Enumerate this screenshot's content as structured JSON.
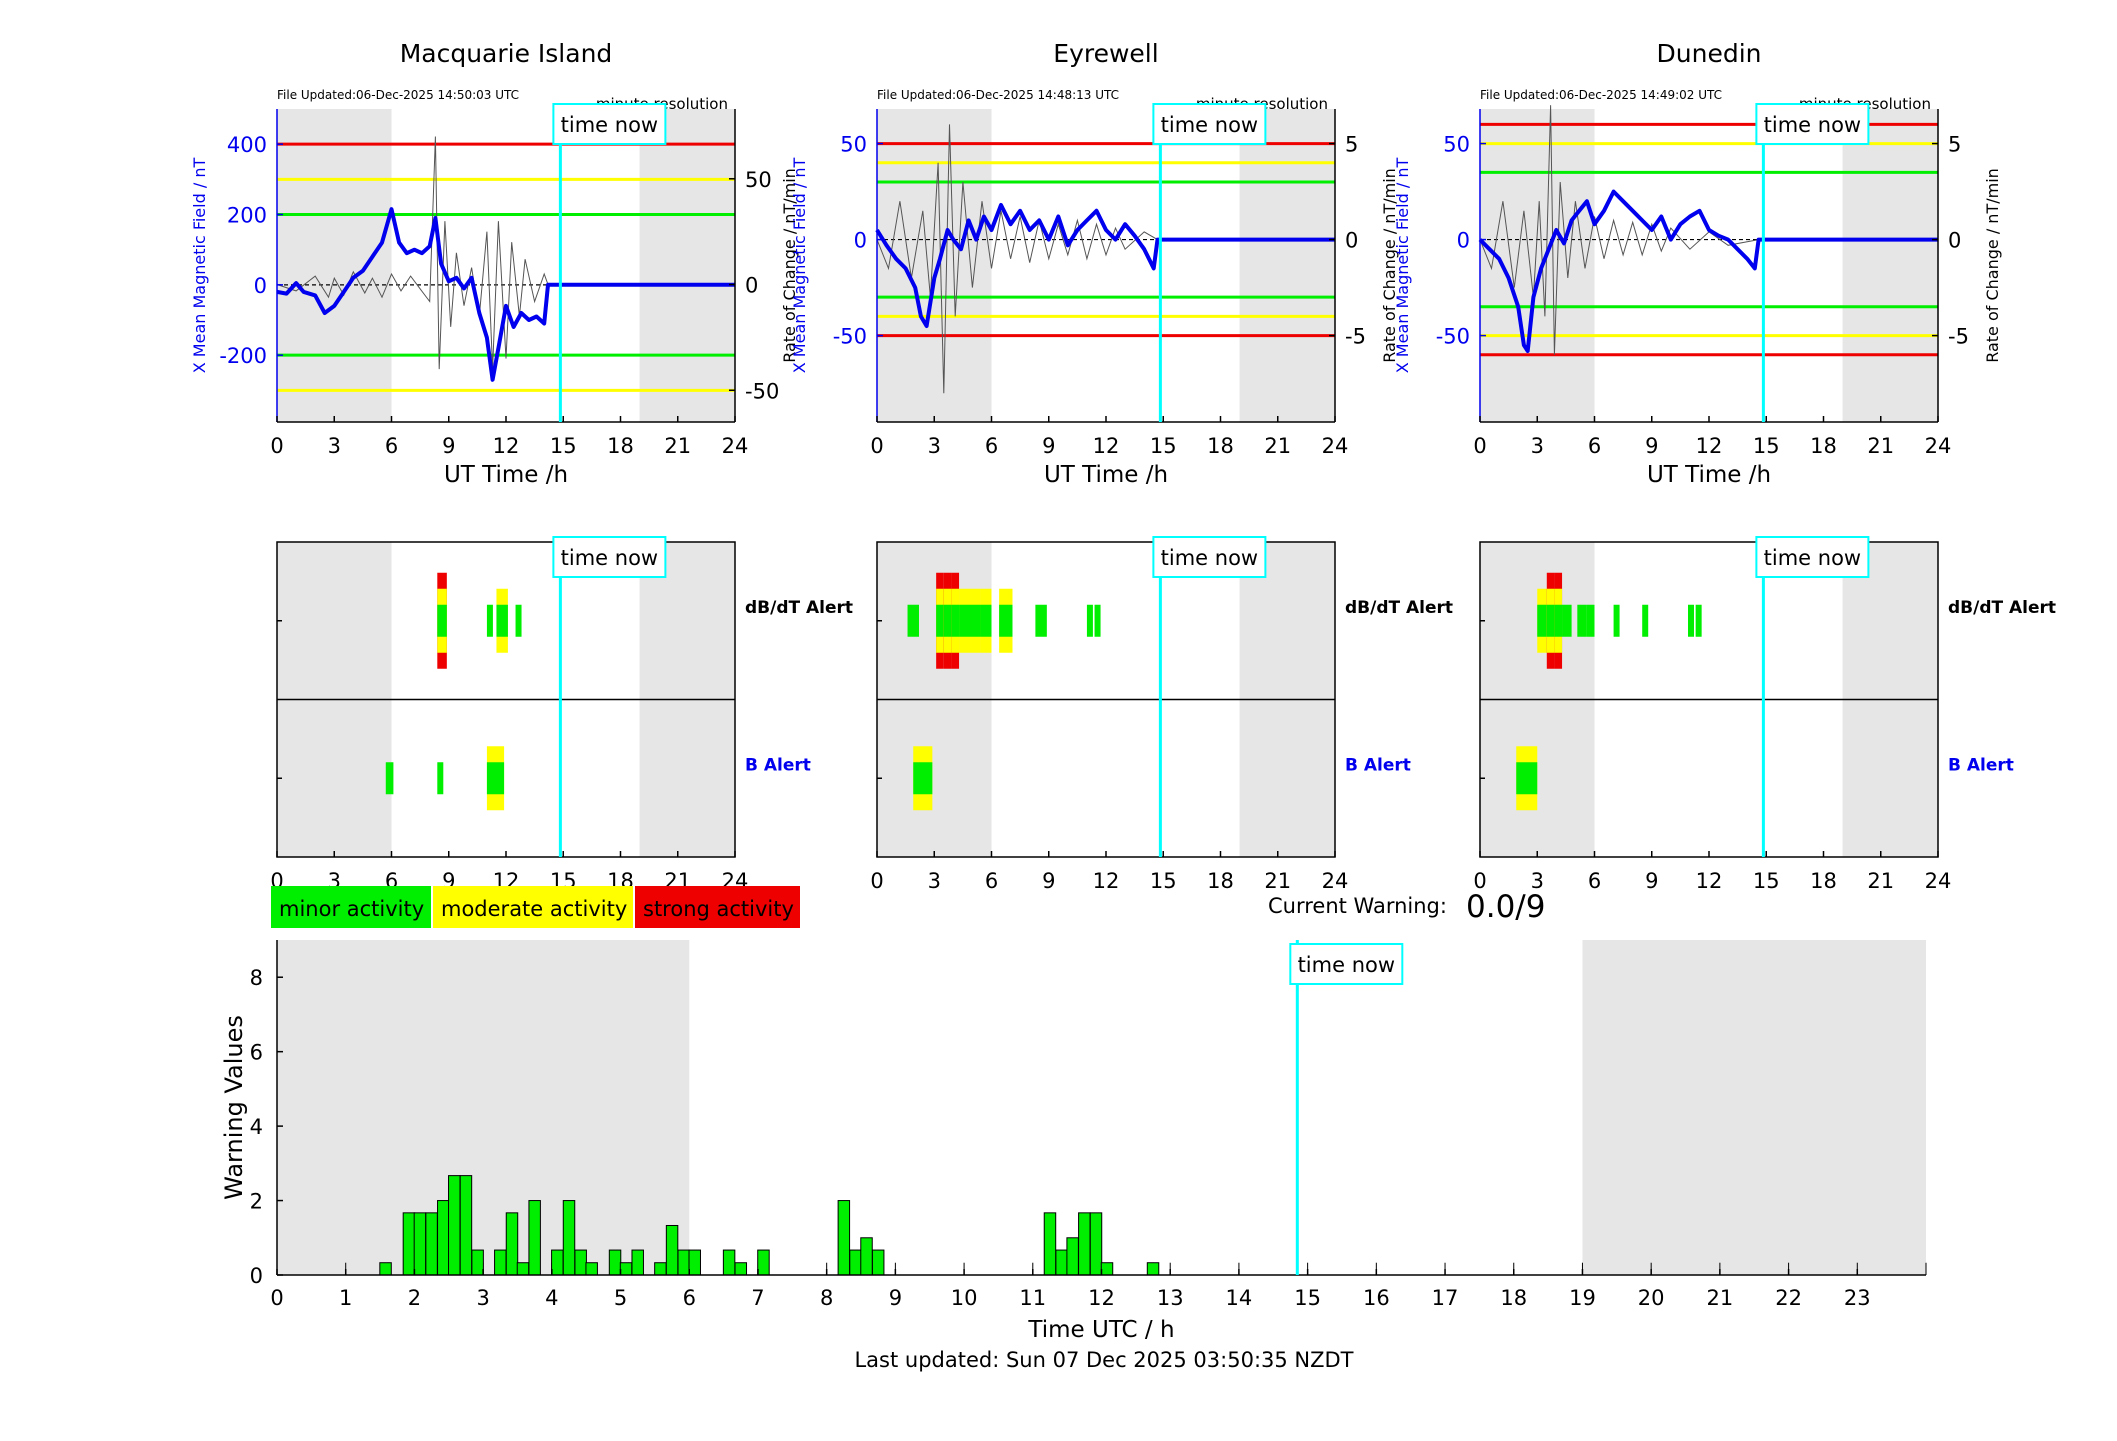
{
  "page": {
    "footer": "Last updated: Sun 07 Dec 2025 03:50:35 NZDT"
  },
  "colors": {
    "night": "#e6e6e6",
    "field": "#0000ee",
    "roc": "#555555",
    "green": "#00ee00",
    "yellow": "#ffff00",
    "red": "#ee0000",
    "cyan": "#00ffff"
  },
  "time_now_label": "time now",
  "time_now_h": 14.85,
  "stations": [
    {
      "name": "Macquarie Island",
      "file_updated": "File Updated:06-Dec-2025 14:50:03 UTC",
      "resolution": "minute resolution",
      "ylim": [
        -390,
        500
      ],
      "y2lim": [
        -65,
        83
      ],
      "yticks": [
        -200,
        0,
        200,
        400
      ],
      "y2ticks": [
        -50,
        0,
        50
      ],
      "thresholds": {
        "green": 200,
        "yellow": 300,
        "red": 400
      },
      "night": [
        [
          0,
          6
        ],
        [
          19,
          24
        ]
      ],
      "series_field": [
        [
          0,
          -20
        ],
        [
          0.5,
          -25
        ],
        [
          1,
          5
        ],
        [
          1.4,
          -20
        ],
        [
          2,
          -30
        ],
        [
          2.5,
          -80
        ],
        [
          3,
          -60
        ],
        [
          3.5,
          -20
        ],
        [
          4,
          20
        ],
        [
          4.5,
          40
        ],
        [
          5,
          80
        ],
        [
          5.5,
          120
        ],
        [
          6,
          215
        ],
        [
          6.4,
          120
        ],
        [
          6.8,
          90
        ],
        [
          7.2,
          100
        ],
        [
          7.6,
          90
        ],
        [
          8,
          110
        ],
        [
          8.3,
          190
        ],
        [
          8.6,
          60
        ],
        [
          9,
          10
        ],
        [
          9.4,
          20
        ],
        [
          9.8,
          -10
        ],
        [
          10.2,
          20
        ],
        [
          10.6,
          -80
        ],
        [
          11,
          -150
        ],
        [
          11.3,
          -270
        ],
        [
          11.6,
          -180
        ],
        [
          12,
          -60
        ],
        [
          12.4,
          -120
        ],
        [
          12.8,
          -80
        ],
        [
          13.2,
          -100
        ],
        [
          13.6,
          -90
        ],
        [
          14,
          -110
        ],
        [
          14.2,
          0
        ],
        [
          14.85,
          0
        ],
        [
          24,
          0
        ]
      ],
      "series_roc": [
        [
          0,
          0
        ],
        [
          1,
          -3
        ],
        [
          2,
          4
        ],
        [
          2.7,
          -6
        ],
        [
          3,
          3
        ],
        [
          3.5,
          -5
        ],
        [
          4,
          6
        ],
        [
          4.6,
          -4
        ],
        [
          5,
          3
        ],
        [
          5.5,
          -6
        ],
        [
          6,
          5
        ],
        [
          6.5,
          -3
        ],
        [
          7,
          4
        ],
        [
          7.5,
          -2
        ],
        [
          8,
          -8
        ],
        [
          8.3,
          70
        ],
        [
          8.5,
          -40
        ],
        [
          8.8,
          30
        ],
        [
          9.1,
          -20
        ],
        [
          9.4,
          15
        ],
        [
          9.8,
          -10
        ],
        [
          10.2,
          8
        ],
        [
          10.6,
          -15
        ],
        [
          11,
          25
        ],
        [
          11.3,
          -40
        ],
        [
          11.6,
          30
        ],
        [
          12,
          -35
        ],
        [
          12.3,
          20
        ],
        [
          12.7,
          -15
        ],
        [
          13,
          12
        ],
        [
          13.5,
          -8
        ],
        [
          14,
          5
        ],
        [
          14.2,
          0
        ],
        [
          24,
          0
        ]
      ],
      "db_alert": [
        [
          8.4,
          8.9,
          3
        ],
        [
          11,
          11.3,
          1
        ],
        [
          11.5,
          12.1,
          2
        ],
        [
          12.5,
          12.8,
          1
        ]
      ],
      "b_alert": [
        [
          5.7,
          6.1,
          1
        ],
        [
          8.4,
          8.7,
          1
        ],
        [
          11,
          11.9,
          2
        ]
      ]
    },
    {
      "name": "Eyrewell",
      "file_updated": "File Updated:06-Dec-2025 14:48:13 UTC",
      "resolution": "minute resolution",
      "ylim": [
        -95,
        68
      ],
      "y2lim": [
        -9.5,
        6.8
      ],
      "yticks": [
        -50,
        0,
        50
      ],
      "y2ticks": [
        -5,
        0,
        5
      ],
      "thresholds": {
        "green": 30,
        "yellow": 40,
        "red": 50
      },
      "night": [
        [
          0,
          6
        ],
        [
          19,
          24
        ]
      ],
      "series_field": [
        [
          0,
          5
        ],
        [
          0.5,
          -3
        ],
        [
          1,
          -10
        ],
        [
          1.5,
          -15
        ],
        [
          2,
          -25
        ],
        [
          2.3,
          -40
        ],
        [
          2.6,
          -45
        ],
        [
          3,
          -20
        ],
        [
          3.3,
          -10
        ],
        [
          3.7,
          5
        ],
        [
          4,
          0
        ],
        [
          4.4,
          -5
        ],
        [
          4.8,
          10
        ],
        [
          5.2,
          0
        ],
        [
          5.6,
          12
        ],
        [
          6,
          5
        ],
        [
          6.5,
          18
        ],
        [
          7,
          8
        ],
        [
          7.5,
          15
        ],
        [
          8,
          5
        ],
        [
          8.5,
          10
        ],
        [
          9,
          0
        ],
        [
          9.5,
          12
        ],
        [
          10,
          -3
        ],
        [
          10.5,
          5
        ],
        [
          11,
          10
        ],
        [
          11.5,
          15
        ],
        [
          12,
          5
        ],
        [
          12.5,
          0
        ],
        [
          13,
          8
        ],
        [
          13.5,
          2
        ],
        [
          14,
          -5
        ],
        [
          14.5,
          -15
        ],
        [
          14.7,
          0
        ],
        [
          24,
          0
        ]
      ],
      "series_roc": [
        [
          0,
          0
        ],
        [
          0.6,
          -1.5
        ],
        [
          1.2,
          2
        ],
        [
          1.8,
          -2
        ],
        [
          2.4,
          1.5
        ],
        [
          2.8,
          -3
        ],
        [
          3.2,
          4
        ],
        [
          3.5,
          -8
        ],
        [
          3.8,
          6
        ],
        [
          4.1,
          -4
        ],
        [
          4.5,
          3
        ],
        [
          5,
          -2.5
        ],
        [
          5.5,
          2
        ],
        [
          6,
          -1.5
        ],
        [
          6.5,
          1.5
        ],
        [
          7,
          -1
        ],
        [
          7.5,
          1.2
        ],
        [
          8,
          -1.2
        ],
        [
          8.5,
          1
        ],
        [
          9,
          -1
        ],
        [
          9.5,
          0.8
        ],
        [
          10,
          -0.8
        ],
        [
          10.5,
          1
        ],
        [
          11,
          -1
        ],
        [
          11.5,
          0.8
        ],
        [
          12,
          -0.8
        ],
        [
          12.5,
          0.6
        ],
        [
          13,
          -0.5
        ],
        [
          14,
          0.4
        ],
        [
          14.7,
          0
        ],
        [
          24,
          0
        ]
      ],
      "db_alert": [
        [
          1.6,
          2.2,
          1
        ],
        [
          3.1,
          3.5,
          3
        ],
        [
          3.5,
          3.9,
          3
        ],
        [
          3.9,
          4.3,
          3
        ],
        [
          4.3,
          4.9,
          2
        ],
        [
          4.9,
          5.4,
          2
        ],
        [
          5.4,
          6.0,
          2
        ],
        [
          6.4,
          7.1,
          2
        ],
        [
          8.3,
          8.9,
          1
        ],
        [
          11.0,
          11.3,
          1
        ],
        [
          11.4,
          11.7,
          1
        ]
      ],
      "b_alert": [
        [
          1.9,
          2.9,
          2
        ]
      ]
    },
    {
      "name": "Dunedin",
      "file_updated": "File Updated:06-Dec-2025 14:49:02 UTC",
      "resolution": "minute resolution",
      "ylim": [
        -95,
        68
      ],
      "y2lim": [
        -9.5,
        6.8
      ],
      "yticks": [
        -50,
        0,
        50
      ],
      "y2ticks": [
        -5,
        0,
        5
      ],
      "thresholds": {
        "green": 35,
        "yellow": 50,
        "red": 60
      },
      "night": [
        [
          0,
          6
        ],
        [
          19,
          24
        ]
      ],
      "series_field": [
        [
          0,
          0
        ],
        [
          0.5,
          -5
        ],
        [
          1,
          -10
        ],
        [
          1.5,
          -20
        ],
        [
          2,
          -35
        ],
        [
          2.3,
          -55
        ],
        [
          2.5,
          -58
        ],
        [
          2.8,
          -30
        ],
        [
          3.2,
          -15
        ],
        [
          3.6,
          -5
        ],
        [
          4,
          5
        ],
        [
          4.4,
          -2
        ],
        [
          4.8,
          10
        ],
        [
          5.2,
          15
        ],
        [
          5.6,
          20
        ],
        [
          6,
          8
        ],
        [
          6.5,
          15
        ],
        [
          7,
          25
        ],
        [
          7.5,
          20
        ],
        [
          8,
          15
        ],
        [
          8.5,
          10
        ],
        [
          9,
          5
        ],
        [
          9.5,
          12
        ],
        [
          10,
          0
        ],
        [
          10.5,
          8
        ],
        [
          11,
          12
        ],
        [
          11.5,
          15
        ],
        [
          12,
          5
        ],
        [
          12.5,
          2
        ],
        [
          13,
          0
        ],
        [
          13.5,
          -5
        ],
        [
          14,
          -10
        ],
        [
          14.4,
          -15
        ],
        [
          14.6,
          0
        ],
        [
          24,
          0
        ]
      ],
      "series_roc": [
        [
          0,
          0
        ],
        [
          0.6,
          -1.5
        ],
        [
          1.2,
          2
        ],
        [
          1.8,
          -2.5
        ],
        [
          2.3,
          1.5
        ],
        [
          2.8,
          -3
        ],
        [
          3.1,
          2
        ],
        [
          3.4,
          -4
        ],
        [
          3.7,
          7
        ],
        [
          3.9,
          -6
        ],
        [
          4.2,
          3
        ],
        [
          4.6,
          -2
        ],
        [
          5,
          2
        ],
        [
          5.5,
          -1.5
        ],
        [
          6,
          1.2
        ],
        [
          6.5,
          -1
        ],
        [
          7,
          1
        ],
        [
          7.5,
          -0.8
        ],
        [
          8,
          0.9
        ],
        [
          8.5,
          -0.8
        ],
        [
          9,
          0.8
        ],
        [
          9.5,
          -0.6
        ],
        [
          10,
          0.6
        ],
        [
          11,
          -0.5
        ],
        [
          12,
          0.4
        ],
        [
          13,
          -0.3
        ],
        [
          14.6,
          0
        ],
        [
          24,
          0
        ]
      ],
      "db_alert": [
        [
          3.0,
          3.5,
          2
        ],
        [
          3.5,
          3.9,
          3
        ],
        [
          3.9,
          4.3,
          3
        ],
        [
          4.3,
          4.8,
          1
        ],
        [
          5.1,
          5.6,
          1
        ],
        [
          5.6,
          6.0,
          1
        ],
        [
          7.0,
          7.3,
          1
        ],
        [
          8.5,
          8.8,
          1
        ],
        [
          10.9,
          11.2,
          1
        ],
        [
          11.3,
          11.6,
          1
        ]
      ],
      "b_alert": [
        [
          1.9,
          3.0,
          2
        ]
      ]
    }
  ],
  "legend": {
    "minor": "minor activity",
    "moderate": "moderate activity",
    "strong": "strong activity"
  },
  "current_warning": {
    "label": "Current Warning:",
    "value": "0.0/9"
  },
  "chart_data": {
    "type": "bar",
    "xlabel": "Time UTC / h",
    "ylabel": "Warning Values",
    "xlim": [
      0,
      24
    ],
    "ylim": [
      0,
      9
    ],
    "yticks": [
      0,
      2,
      4,
      6,
      8
    ],
    "night": [
      [
        0,
        6
      ],
      [
        19,
        24
      ]
    ],
    "bar_width_h": 0.167,
    "bars": [
      [
        1.58,
        0.33
      ],
      [
        1.92,
        1.67
      ],
      [
        2.08,
        1.67
      ],
      [
        2.25,
        1.67
      ],
      [
        2.42,
        2.0
      ],
      [
        2.58,
        2.67
      ],
      [
        2.75,
        2.67
      ],
      [
        2.92,
        0.67
      ],
      [
        3.25,
        0.67
      ],
      [
        3.42,
        1.67
      ],
      [
        3.58,
        0.33
      ],
      [
        3.75,
        2.0
      ],
      [
        4.08,
        0.67
      ],
      [
        4.25,
        2.0
      ],
      [
        4.42,
        0.67
      ],
      [
        4.58,
        0.33
      ],
      [
        4.92,
        0.67
      ],
      [
        5.08,
        0.33
      ],
      [
        5.25,
        0.67
      ],
      [
        5.58,
        0.33
      ],
      [
        5.75,
        1.33
      ],
      [
        5.92,
        0.67
      ],
      [
        6.08,
        0.67
      ],
      [
        6.58,
        0.67
      ],
      [
        6.75,
        0.33
      ],
      [
        7.08,
        0.67
      ],
      [
        8.25,
        2.0
      ],
      [
        8.42,
        0.67
      ],
      [
        8.58,
        1.0
      ],
      [
        8.75,
        0.67
      ],
      [
        11.25,
        1.67
      ],
      [
        11.42,
        0.67
      ],
      [
        11.58,
        1.0
      ],
      [
        11.75,
        1.67
      ],
      [
        11.92,
        1.67
      ],
      [
        12.08,
        0.33
      ],
      [
        12.75,
        0.33
      ]
    ]
  }
}
